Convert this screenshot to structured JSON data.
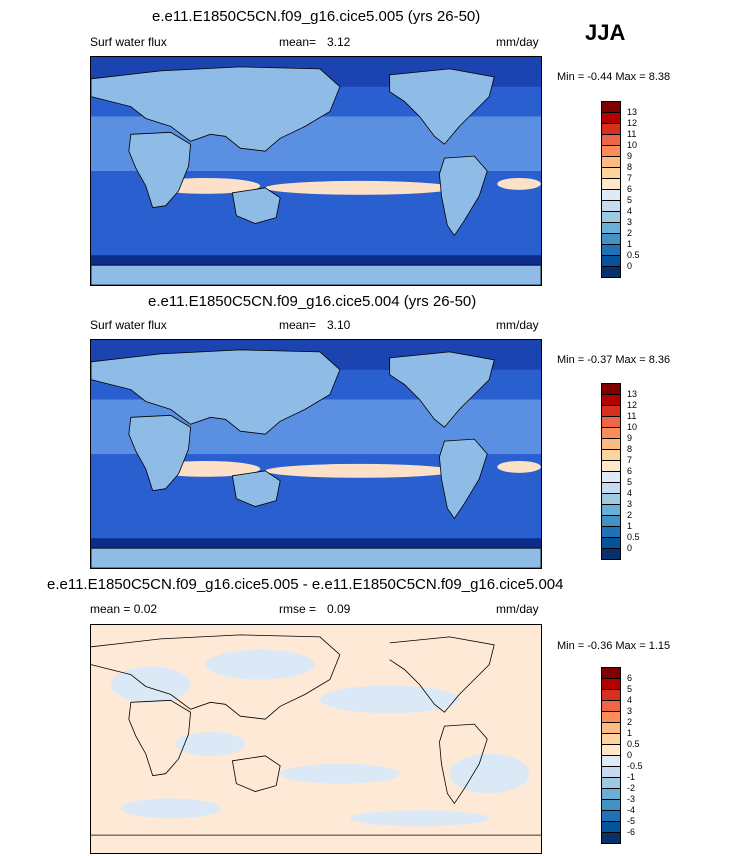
{
  "season": "JJA",
  "panels": [
    {
      "title": "e.e11.E1850C5CN.f09_g16.cice5.005 (yrs 26-50)",
      "left_label": "Surf water flux",
      "stat_label": "mean=",
      "stat_value": "3.12",
      "units": "mm/day",
      "minmax": "Min = -0.44 Max = 8.38",
      "colorbar": {
        "labels": [
          "13",
          "12",
          "11",
          "10",
          "9",
          "8",
          "7",
          "6",
          "5",
          "4",
          "3",
          "2",
          "1",
          "0.5",
          "0"
        ],
        "colors": [
          "#7f0000",
          "#b30000",
          "#d7301f",
          "#ef6548",
          "#fc8d59",
          "#fdbb84",
          "#fdd49e",
          "#fee8c8",
          "#deebf7",
          "#c6dbef",
          "#9ecae1",
          "#6baed6",
          "#4292c6",
          "#2171b5",
          "#08519c",
          "#08306b"
        ]
      }
    },
    {
      "title": "e.e11.E1850C5CN.f09_g16.cice5.004 (yrs 26-50)",
      "left_label": "Surf water flux",
      "stat_label": "mean=",
      "stat_value": "3.10",
      "units": "mm/day",
      "minmax": "Min = -0.37 Max = 8.36",
      "colorbar": {
        "labels": [
          "13",
          "12",
          "11",
          "10",
          "9",
          "8",
          "7",
          "6",
          "5",
          "4",
          "3",
          "2",
          "1",
          "0.5",
          "0"
        ],
        "colors": [
          "#7f0000",
          "#b30000",
          "#d7301f",
          "#ef6548",
          "#fc8d59",
          "#fdbb84",
          "#fdd49e",
          "#fee8c8",
          "#deebf7",
          "#c6dbef",
          "#9ecae1",
          "#6baed6",
          "#4292c6",
          "#2171b5",
          "#08519c",
          "#08306b"
        ]
      }
    },
    {
      "title": "e.e11.E1850C5CN.f09_g16.cice5.005 - e.e11.E1850C5CN.f09_g16.cice5.004",
      "left_label": "mean =   0.02",
      "stat_label": "rmse =",
      "stat_value": "0.09",
      "units": "mm/day",
      "minmax": "Min = -0.36 Max = 1.15",
      "colorbar": {
        "labels": [
          "6",
          "5",
          "4",
          "3",
          "2",
          "1",
          "0.5",
          "0",
          "-0.5",
          "-1",
          "-2",
          "-3",
          "-4",
          "-5",
          "-6"
        ],
        "colors": [
          "#7f0000",
          "#b30000",
          "#d7301f",
          "#ef6548",
          "#fc8d59",
          "#fdbb84",
          "#fdd49e",
          "#fee8c8",
          "#deebf7",
          "#c6dbef",
          "#9ecae1",
          "#6baed6",
          "#4292c6",
          "#2171b5",
          "#08519c",
          "#08306b"
        ]
      }
    }
  ],
  "colors": {
    "ocean_dark": "#1f4fc4",
    "ocean_mid": "#3f7fe0",
    "land_light": "#9ecae1",
    "wet_band": "#fee8c8",
    "diff_pos": "#fde9d6",
    "diff_neg": "#dbe9f7"
  }
}
